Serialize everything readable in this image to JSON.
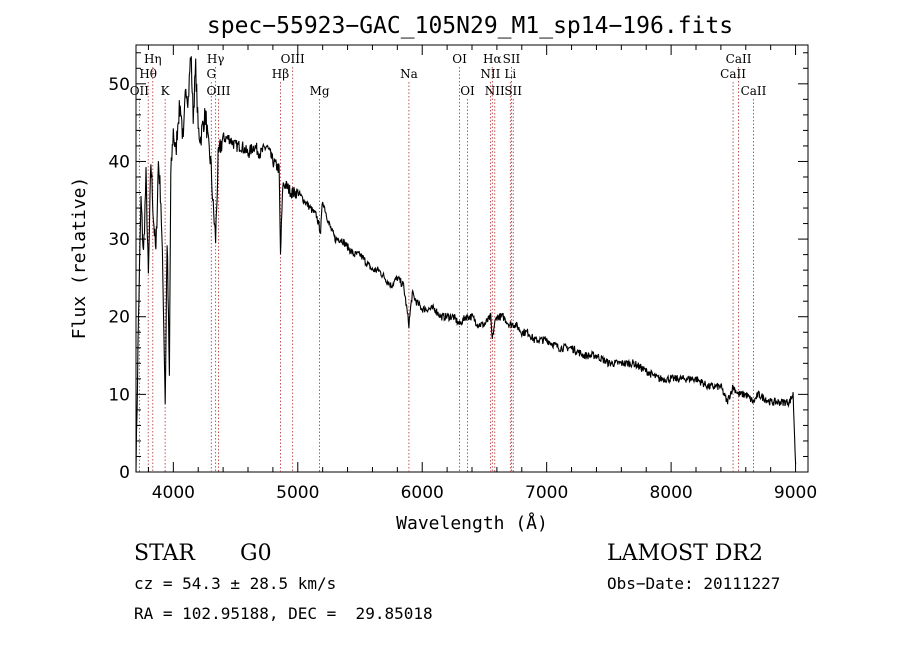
{
  "chart_data": {
    "type": "line",
    "title": "spec−55923−GAC_105N29_M1_sp14−196.fits",
    "xlabel": "Wavelength (Å)",
    "ylabel": "Flux (relative)",
    "xlim": [
      3700,
      9100
    ],
    "ylim": [
      0,
      55
    ],
    "xticks": [
      4000,
      5000,
      6000,
      7000,
      8000,
      9000
    ],
    "yticks": [
      0,
      10,
      20,
      30,
      40,
      50
    ],
    "grid": false,
    "series": [
      {
        "x": [
          3700,
          3720,
          3740,
          3760,
          3780,
          3800,
          3820,
          3840,
          3860,
          3880,
          3900,
          3920,
          3935,
          3950,
          3968,
          3980,
          4000,
          4020,
          4040,
          4060,
          4080,
          4100,
          4120,
          4140,
          4160,
          4180,
          4200,
          4220,
          4240,
          4260,
          4280,
          4300,
          4320,
          4340,
          4360,
          4380,
          4400,
          4450,
          4500,
          4550,
          4600,
          4650,
          4700,
          4750,
          4800,
          4850,
          4861,
          4880,
          4900,
          4950,
          5000,
          5050,
          5100,
          5150,
          5183,
          5200,
          5250,
          5300,
          5350,
          5400,
          5450,
          5500,
          5550,
          5600,
          5650,
          5700,
          5750,
          5800,
          5850,
          5893,
          5920,
          5950,
          6000,
          6050,
          6100,
          6150,
          6200,
          6250,
          6300,
          6350,
          6400,
          6450,
          6500,
          6550,
          6563,
          6580,
          6600,
          6650,
          6700,
          6750,
          6800,
          6850,
          6900,
          6950,
          7000,
          7100,
          7200,
          7300,
          7400,
          7500,
          7600,
          7700,
          7800,
          7900,
          8000,
          8100,
          8200,
          8300,
          8400,
          8450,
          8498,
          8542,
          8600,
          8662,
          8700,
          8800,
          8900,
          8950,
          8980,
          9000
        ],
        "y": [
          0,
          20,
          35,
          28,
          38,
          25,
          40,
          33,
          28,
          40,
          35,
          22,
          9,
          30,
          12,
          38,
          44,
          41,
          46,
          47,
          42,
          50,
          48,
          54,
          46,
          52,
          44,
          43,
          45,
          46,
          42,
          40,
          34,
          30,
          40,
          42,
          43,
          43,
          42,
          42,
          41,
          42,
          41,
          42,
          40,
          39,
          28,
          37,
          37,
          36,
          36,
          35,
          34,
          33,
          31,
          35,
          32,
          30,
          30,
          29,
          28,
          28,
          27,
          26,
          26,
          25,
          24,
          25,
          24,
          19,
          23,
          22,
          21,
          21,
          21,
          20,
          20,
          20,
          19,
          20,
          20,
          19,
          19,
          20,
          17,
          19,
          20,
          20,
          19,
          19,
          18,
          18,
          17,
          17,
          17,
          16,
          16,
          15,
          15,
          14,
          14,
          14,
          13,
          12,
          12,
          12,
          12,
          11,
          11,
          9,
          11,
          10,
          10,
          9,
          10,
          9,
          9,
          9,
          10,
          1
        ]
      }
    ],
    "lines": [
      {
        "name": "OII",
        "x": 3727,
        "row": 3
      },
      {
        "name": "Hθ",
        "x": 3798,
        "row": 2
      },
      {
        "name": "Hη",
        "x": 3835,
        "row": 1
      },
      {
        "name": "K",
        "x": 3934,
        "row": 3
      },
      {
        "name": "Hγ",
        "x": 4340,
        "row": 1
      },
      {
        "name": "G",
        "x": 4305,
        "row": 2
      },
      {
        "name": "OIII",
        "x": 4363,
        "row": 3
      },
      {
        "name": "Hβ",
        "x": 4861,
        "row": 2
      },
      {
        "name": "OIII",
        "x": 4959,
        "row": 1
      },
      {
        "name": "Mg",
        "x": 5175,
        "row": 3
      },
      {
        "name": "Na",
        "x": 5893,
        "row": 2
      },
      {
        "name": "OI",
        "x": 6300,
        "row": 1
      },
      {
        "name": "OI",
        "x": 6364,
        "row": 3
      },
      {
        "name": "Hα",
        "x": 6563,
        "row": 1
      },
      {
        "name": "NII",
        "x": 6548,
        "row": 2
      },
      {
        "name": "NII",
        "x": 6583,
        "row": 3
      },
      {
        "name": "SII",
        "x": 6717,
        "row": 1
      },
      {
        "name": "Li",
        "x": 6708,
        "row": 2
      },
      {
        "name": "SII",
        "x": 6731,
        "row": 3
      },
      {
        "name": "CaII",
        "x": 8542,
        "row": 1
      },
      {
        "name": "CaII",
        "x": 8498,
        "row": 2
      },
      {
        "name": "CaII",
        "x": 8662,
        "row": 3
      }
    ]
  },
  "info": {
    "class": "STAR",
    "subclass": "G0",
    "survey": "LAMOST DR2",
    "cz": "cz = 54.3 ± 28.5 km/s",
    "obs_date": "Obs−Date: 20111227",
    "radec": "RA = 102.95188, DEC =  29.85018"
  }
}
